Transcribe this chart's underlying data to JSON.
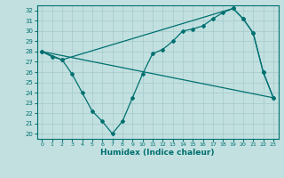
{
  "xlabel": "Humidex (Indice chaleur)",
  "bg_color": "#c2e0e0",
  "grid_color": "#a8cccc",
  "line_color": "#007070",
  "xlim": [
    -0.5,
    23.5
  ],
  "ylim": [
    19.5,
    32.5
  ],
  "xticks": [
    0,
    1,
    2,
    3,
    4,
    5,
    6,
    7,
    8,
    9,
    10,
    11,
    12,
    13,
    14,
    15,
    16,
    17,
    18,
    19,
    20,
    21,
    22,
    23
  ],
  "yticks": [
    20,
    21,
    22,
    23,
    24,
    25,
    26,
    27,
    28,
    29,
    30,
    31,
    32
  ],
  "line1_x": [
    0,
    1,
    2,
    3,
    4,
    5,
    6,
    7,
    8,
    9,
    10,
    11,
    12,
    13,
    14,
    15,
    16,
    17,
    18,
    19,
    20,
    21,
    22,
    23
  ],
  "line1_y": [
    28.0,
    27.5,
    27.2,
    25.8,
    24.0,
    22.2,
    21.2,
    20.0,
    21.2,
    23.5,
    25.8,
    27.8,
    28.2,
    29.0,
    30.0,
    30.2,
    30.5,
    31.2,
    31.8,
    32.2,
    31.2,
    29.8,
    26.0,
    23.5
  ],
  "line2_x": [
    0,
    2,
    19,
    20,
    21,
    22,
    23
  ],
  "line2_y": [
    28.0,
    27.2,
    32.2,
    31.2,
    29.8,
    26.0,
    23.5
  ],
  "line3_x": [
    0,
    23
  ],
  "line3_y": [
    28.0,
    23.5
  ]
}
